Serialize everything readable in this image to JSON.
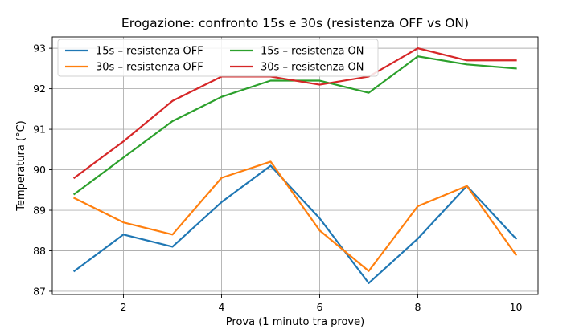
{
  "chart_data": {
    "type": "line",
    "title": "Erogazione: confronto 15s e 30s (resistenza OFF vs ON)",
    "xlabel": "Prova (1 minuto tra prove)",
    "ylabel": "Temperatura (°C)",
    "x": [
      1,
      2,
      3,
      4,
      5,
      6,
      7,
      8,
      9,
      10
    ],
    "xlim": [
      0.55,
      10.45
    ],
    "ylim": [
      86.92,
      93.28
    ],
    "xticks": [
      2,
      4,
      6,
      8,
      10
    ],
    "yticks": [
      87,
      88,
      89,
      90,
      91,
      92,
      93
    ],
    "grid": true,
    "legend_position": "top-left",
    "legend_columns": 2,
    "series": [
      {
        "name": "15s – resistenza OFF",
        "color": "#1f77b4",
        "values": [
          87.5,
          88.4,
          88.1,
          89.2,
          90.1,
          88.8,
          87.2,
          88.3,
          89.6,
          88.3
        ]
      },
      {
        "name": "30s – resistenza OFF",
        "color": "#ff7f0e",
        "values": [
          89.3,
          88.7,
          88.4,
          89.8,
          90.2,
          88.5,
          87.5,
          89.1,
          89.6,
          87.9
        ]
      },
      {
        "name": "15s – resistenza ON",
        "color": "#2ca02c",
        "values": [
          89.4,
          90.3,
          91.2,
          91.8,
          92.2,
          92.2,
          91.9,
          92.8,
          92.6,
          92.5
        ]
      },
      {
        "name": "30s – resistenza ON",
        "color": "#d62728",
        "values": [
          89.8,
          90.7,
          91.7,
          92.3,
          92.3,
          92.1,
          92.3,
          93.0,
          92.7,
          92.7
        ]
      }
    ]
  }
}
